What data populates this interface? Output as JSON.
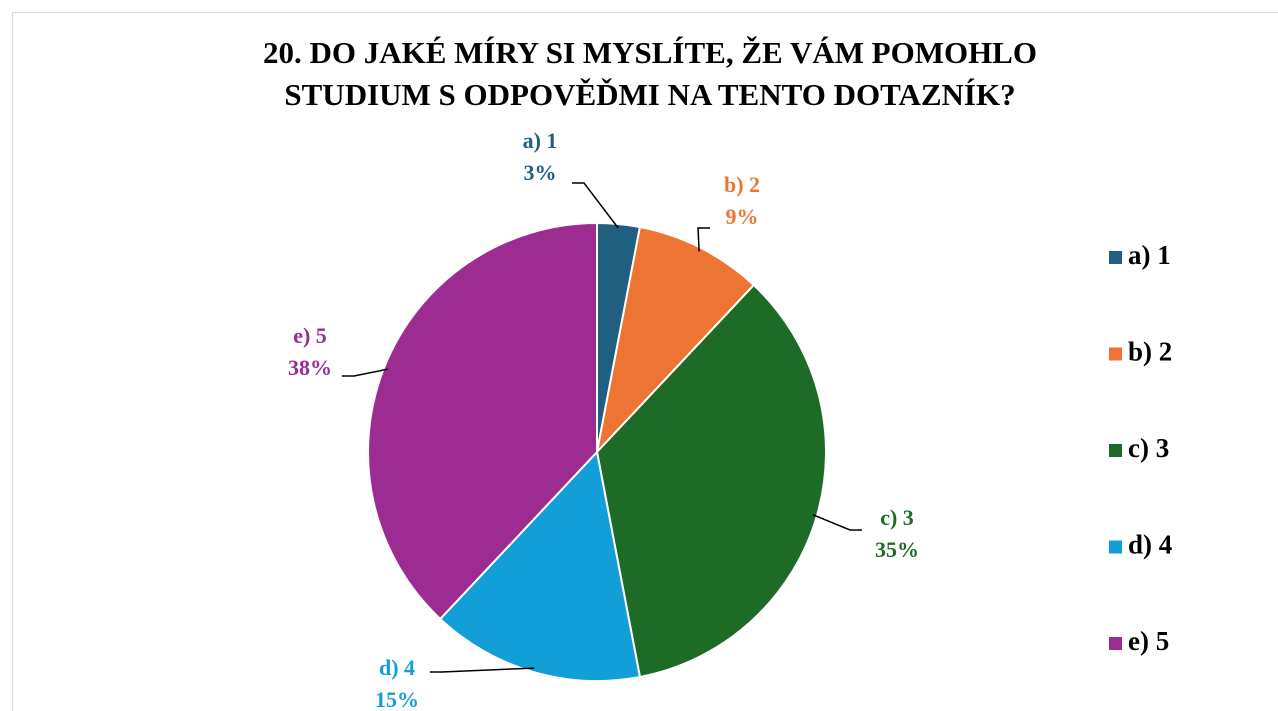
{
  "chart_data": {
    "type": "pie",
    "title": [
      "20. DO JAKÉ MÍRY SI MYSLÍTE, ŽE VÁM POMOHLO",
      "STUDIUM S ODPOVĚĎMI NA TENTO DOTAZNÍK?"
    ],
    "categories": [
      "a) 1",
      "b) 2",
      "c) 3",
      "d) 4",
      "e) 5"
    ],
    "values": [
      3,
      9,
      35,
      15,
      38
    ],
    "value_labels": [
      "3%",
      "9%",
      "35%",
      "15%",
      "38%"
    ],
    "colors": [
      "#215f80",
      "#ed7432",
      "#1e6b27",
      "#129fd7",
      "#9c2b92"
    ],
    "legend": "right"
  }
}
